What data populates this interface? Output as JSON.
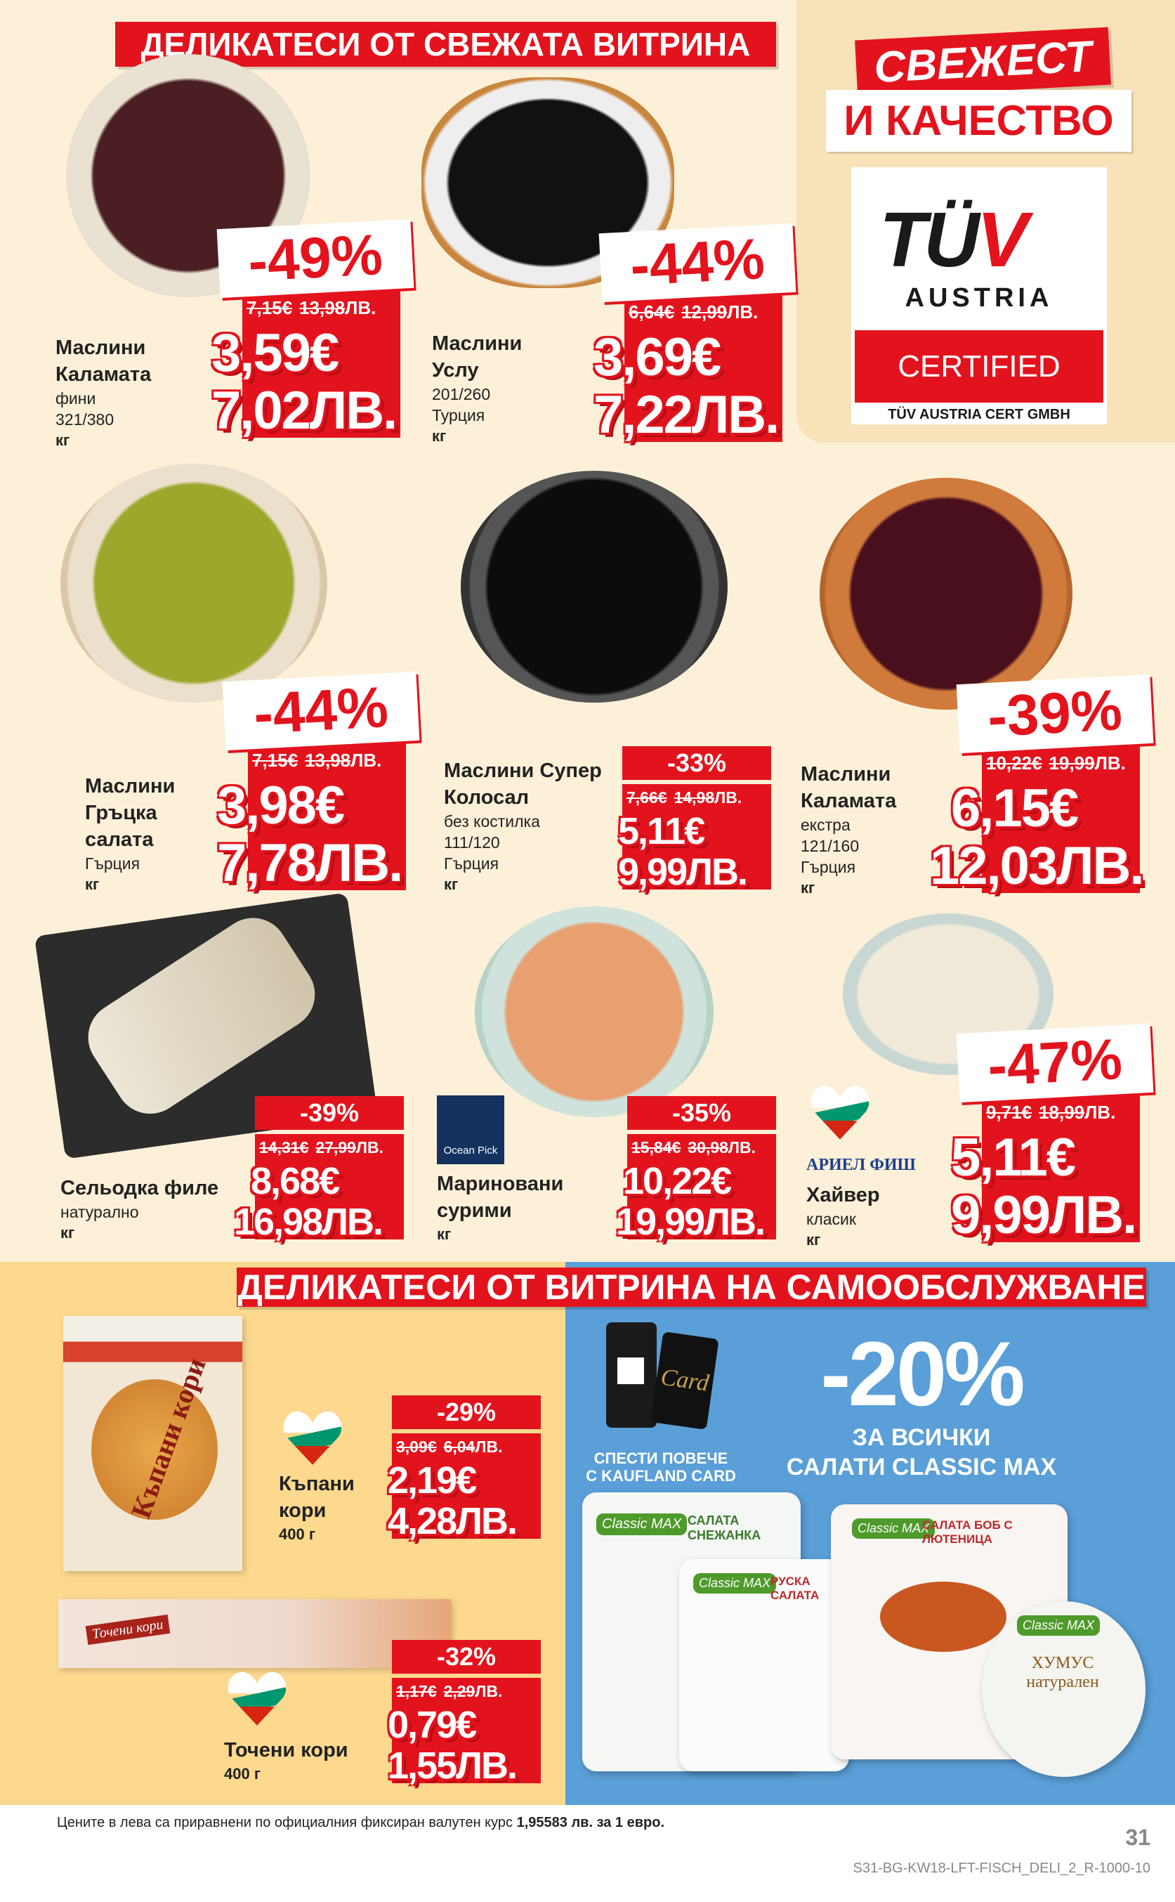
{
  "header_top": "ДЕЛИКАТЕСИ ОТ СВЕЖАТА ВИТРИНА",
  "promo": {
    "fresh": "СВЕЖЕСТ",
    "quality": "И КАЧЕСТВО"
  },
  "tuv": {
    "logo_main": "TÜ",
    "logo_v": "V",
    "austria": "AUSTRIA",
    "certified": "CERTIFIED",
    "issuer": "TÜV AUSTRIA CERT GMBH"
  },
  "products": [
    {
      "name1": "Маслини",
      "name2": "Каламата",
      "sub": [
        "фини",
        "321/380"
      ],
      "unit": "кг",
      "discount": "-49%",
      "old_eur": "7,15€",
      "old_lev": "13,98",
      "eur": "3,59€",
      "lev": "7,02ЛВ."
    },
    {
      "name1": "Маслини",
      "name2": "Услу",
      "sub": [
        "201/260",
        "Турция"
      ],
      "unit": "кг",
      "discount": "-44%",
      "old_eur": "6,64€",
      "old_lev": "12,99",
      "eur": "3,69€",
      "lev": "7,22ЛВ."
    },
    {
      "name1": "Маслини",
      "name2": "Гръцка",
      "name3": "салата",
      "sub": [
        "Гърция"
      ],
      "unit": "кг",
      "discount": "-44%",
      "old_eur": "7,15€",
      "old_lev": "13,98",
      "eur": "3,98€",
      "lev": "7,78ЛВ."
    },
    {
      "name1": "Маслини Супер",
      "name2": "Колосал",
      "sub": [
        "без костилка",
        "111/120",
        "Гърция"
      ],
      "unit": "кг",
      "discount": "-33%",
      "old_eur": "7,66€",
      "old_lev": "14,98",
      "eur": "5,11€",
      "lev": "9,99ЛВ."
    },
    {
      "name1": "Маслини",
      "name2": "Каламата",
      "sub": [
        "екстра",
        "121/160",
        "Гърция"
      ],
      "unit": "кг",
      "discount": "-39%",
      "old_eur": "10,22€",
      "old_lev": "19,99",
      "eur": "6,15€",
      "lev": "12,03ЛВ."
    },
    {
      "name1": "Сельодка филе",
      "sub": [
        "натурално"
      ],
      "unit": "кг",
      "discount": "-39%",
      "old_eur": "14,31€",
      "old_lev": "27,99",
      "eur": "8,68€",
      "lev": "16,98ЛВ."
    },
    {
      "name1": "Мариновани",
      "name2": "сурими",
      "unit": "кг",
      "brand": "Ocean Pick",
      "discount": "-35%",
      "old_eur": "15,84€",
      "old_lev": "30,98",
      "eur": "10,22€",
      "lev": "19,99ЛВ."
    },
    {
      "name1": "Хайвер",
      "sub": [
        "класик"
      ],
      "unit": "кг",
      "brand": "АРИЕЛ ФИШ",
      "discount": "-47%",
      "old_eur": "9,71€",
      "old_lev": "18,99",
      "eur": "5,11€",
      "lev": "9,99ЛВ."
    },
    {
      "name1": "Къпани",
      "name2": "кори",
      "sub": [
        "400 г"
      ],
      "package_label": "Къпани кори",
      "discount": "-29%",
      "old_eur": "3,09€",
      "old_lev": "6,04",
      "eur": "2,19€",
      "lev": "4,28ЛВ."
    },
    {
      "name1": "Точени кори",
      "sub": [
        "400 г"
      ],
      "package_label": "Точени кори",
      "discount": "-32%",
      "old_eur": "1,17€",
      "old_lev": "2,29",
      "eur": "0,79€",
      "lev": "1,55ЛВ."
    }
  ],
  "lev_suffix": "ЛВ.",
  "header_bottom": "ДЕЛИКАТЕСИ ОТ ВИТРИНА НА САМООБСЛУЖВАНЕ",
  "classic": {
    "card_line1": "СПЕСТИ ПОВЕЧЕ",
    "card_line2": "С KAUFLAND CARD",
    "card_label": "Card",
    "discount": "-20%",
    "line1": "ЗА ВСИЧКИ",
    "line2": "САЛАТИ CLASSIC MAX",
    "brand": "Classic MAX",
    "salads": [
      "САЛАТА СНЕЖАНКА",
      "РУСКА САЛАТА",
      "САЛАТА БОБ С ЛЮТЕНИЦА",
      "ХУМУС натурален"
    ]
  },
  "footer": {
    "note": "Цените в лева са приравнени по официалния фиксиран валутен курс ",
    "note_bold": "1,95583 лв. за 1 евро.",
    "page": "31",
    "code": "S31-BG-KW18-LFT-FISCH_DELI_2_R-1000-10"
  },
  "colors": {
    "red": "#e3131d",
    "cream": "#fdf0d8",
    "yellow": "#fdd98f",
    "blue": "#5a9fd8"
  }
}
